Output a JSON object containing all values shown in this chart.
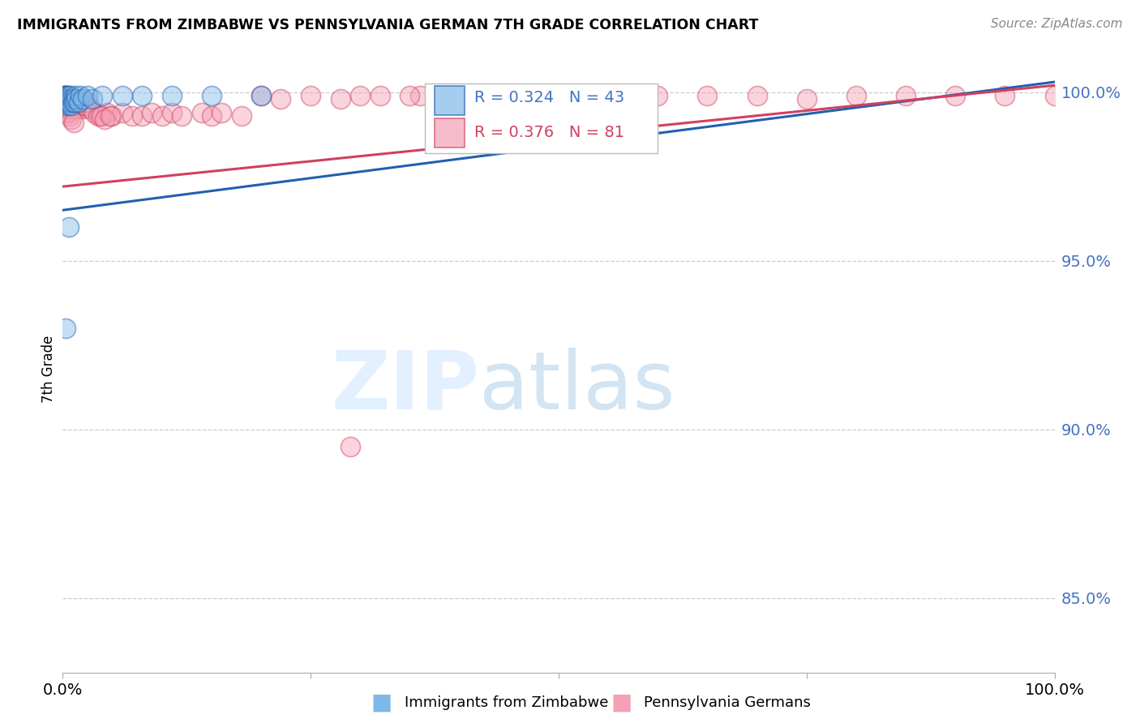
{
  "title": "IMMIGRANTS FROM ZIMBABWE VS PENNSYLVANIA GERMAN 7TH GRADE CORRELATION CHART",
  "source": "Source: ZipAtlas.com",
  "ylabel": "7th Grade",
  "y_tick_labels": [
    "85.0%",
    "90.0%",
    "95.0%",
    "100.0%"
  ],
  "y_tick_values": [
    0.85,
    0.9,
    0.95,
    1.0
  ],
  "x_lim": [
    0.0,
    1.0
  ],
  "y_lim": [
    0.828,
    1.008
  ],
  "legend1_R": "0.324",
  "legend1_N": "43",
  "legend2_R": "0.376",
  "legend2_N": "81",
  "color_blue": "#7fb8e8",
  "color_pink": "#f4a0b5",
  "line_color_blue": "#2060b0",
  "line_color_pink": "#d04060",
  "blue_x": [
    0.001,
    0.001,
    0.001,
    0.002,
    0.002,
    0.002,
    0.002,
    0.003,
    0.003,
    0.003,
    0.004,
    0.004,
    0.004,
    0.005,
    0.005,
    0.005,
    0.006,
    0.006,
    0.006,
    0.007,
    0.007,
    0.008,
    0.008,
    0.009,
    0.009,
    0.01,
    0.011,
    0.012,
    0.013,
    0.014,
    0.016,
    0.018,
    0.02,
    0.025,
    0.03,
    0.04,
    0.06,
    0.08,
    0.11,
    0.15,
    0.2,
    0.006,
    0.003
  ],
  "blue_y": [
    0.999,
    0.998,
    0.997,
    0.999,
    0.998,
    0.997,
    0.996,
    0.999,
    0.998,
    0.997,
    0.999,
    0.998,
    0.997,
    0.999,
    0.998,
    0.997,
    0.999,
    0.998,
    0.996,
    0.998,
    0.997,
    0.999,
    0.997,
    0.998,
    0.996,
    0.997,
    0.998,
    0.997,
    0.999,
    0.998,
    0.997,
    0.999,
    0.998,
    0.999,
    0.998,
    0.999,
    0.999,
    0.999,
    0.999,
    0.999,
    0.999,
    0.96,
    0.93
  ],
  "pink_x": [
    0.001,
    0.001,
    0.002,
    0.002,
    0.002,
    0.003,
    0.003,
    0.003,
    0.004,
    0.004,
    0.004,
    0.005,
    0.005,
    0.005,
    0.006,
    0.006,
    0.006,
    0.007,
    0.007,
    0.008,
    0.008,
    0.009,
    0.009,
    0.01,
    0.01,
    0.011,
    0.012,
    0.013,
    0.014,
    0.015,
    0.016,
    0.018,
    0.02,
    0.022,
    0.025,
    0.028,
    0.032,
    0.036,
    0.04,
    0.045,
    0.05,
    0.06,
    0.07,
    0.08,
    0.09,
    0.1,
    0.11,
    0.12,
    0.14,
    0.15,
    0.16,
    0.18,
    0.2,
    0.22,
    0.25,
    0.28,
    0.32,
    0.36,
    0.4,
    0.45,
    0.5,
    0.55,
    0.6,
    0.65,
    0.7,
    0.75,
    0.8,
    0.85,
    0.9,
    0.95,
    1.0,
    0.3,
    0.35,
    0.038,
    0.042,
    0.048,
    0.005,
    0.007,
    0.009,
    0.011,
    0.29
  ],
  "pink_y": [
    0.998,
    0.997,
    0.999,
    0.998,
    0.996,
    0.999,
    0.997,
    0.995,
    0.998,
    0.997,
    0.995,
    0.998,
    0.997,
    0.995,
    0.998,
    0.997,
    0.994,
    0.997,
    0.995,
    0.998,
    0.996,
    0.997,
    0.995,
    0.997,
    0.995,
    0.996,
    0.997,
    0.995,
    0.997,
    0.995,
    0.996,
    0.997,
    0.995,
    0.996,
    0.997,
    0.995,
    0.994,
    0.993,
    0.993,
    0.994,
    0.993,
    0.994,
    0.993,
    0.993,
    0.994,
    0.993,
    0.994,
    0.993,
    0.994,
    0.993,
    0.994,
    0.993,
    0.999,
    0.998,
    0.999,
    0.998,
    0.999,
    0.999,
    0.999,
    0.998,
    0.999,
    0.999,
    0.999,
    0.999,
    0.999,
    0.998,
    0.999,
    0.999,
    0.999,
    0.999,
    0.999,
    0.999,
    0.999,
    0.993,
    0.992,
    0.993,
    0.994,
    0.993,
    0.992,
    0.991,
    0.895
  ],
  "blue_line_x0": 0.0,
  "blue_line_x1": 1.0,
  "blue_line_y0": 0.965,
  "blue_line_y1": 1.003,
  "pink_line_x0": 0.0,
  "pink_line_x1": 1.0,
  "pink_line_y0": 0.972,
  "pink_line_y1": 1.002
}
